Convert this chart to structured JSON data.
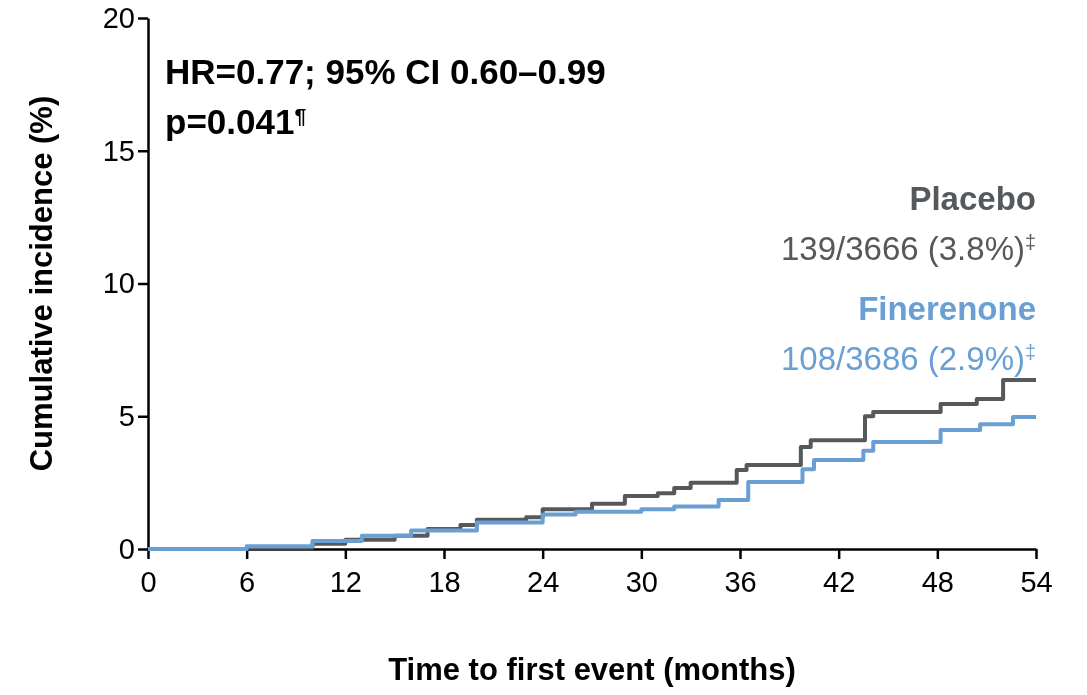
{
  "chart_data": {
    "type": "step",
    "xlabel": "Time to first event (months)",
    "ylabel": "Cumulative incidence (%)",
    "xlim": [
      0,
      54
    ],
    "xticks": [
      0,
      6,
      12,
      18,
      24,
      30,
      36,
      42,
      48,
      54
    ],
    "ylim": [
      0,
      20
    ],
    "yticks": [
      0,
      5,
      10,
      15,
      20
    ],
    "grid": false,
    "legend": "right",
    "line_style": "solid",
    "marker": "none",
    "annotations": [
      "HR=0.77; 95% CI 0.60–0.99",
      "p=0.041$^{¶}$",
      "139/3666 (3.8%)$^{‡}$",
      "108/3686 (2.9%)$^{‡}$"
    ],
    "series": [
      {
        "name": "Placebo",
        "color": "#55595c",
        "x": [
          0,
          6,
          10,
          12,
          15,
          17,
          19,
          20,
          23,
          24,
          27,
          29,
          31,
          32,
          33,
          35.8,
          36.4,
          39.7,
          40.3,
          43.6,
          44.1,
          48.2,
          50.4,
          52,
          54
        ],
        "values": [
          0,
          0.05,
          0.2,
          0.35,
          0.5,
          0.75,
          0.9,
          1.1,
          1.2,
          1.5,
          1.7,
          2.0,
          2.1,
          2.3,
          2.5,
          2.98,
          3.16,
          3.84,
          4.1,
          5.0,
          5.16,
          5.46,
          5.65,
          6.37,
          6.37
        ]
      },
      {
        "name": "Finerenone",
        "color": "#6a9fd4",
        "x": [
          0,
          6,
          10,
          13,
          16,
          20,
          24,
          26,
          30,
          32,
          34.7,
          36.5,
          39.8,
          40.5,
          43.5,
          44.1,
          48.2,
          50.6,
          52.6,
          54
        ],
        "values": [
          0,
          0.1,
          0.3,
          0.5,
          0.7,
          1.0,
          1.3,
          1.4,
          1.5,
          1.6,
          1.85,
          2.52,
          3.0,
          3.35,
          3.7,
          4.03,
          4.48,
          4.7,
          4.97,
          4.97
        ]
      }
    ]
  }
}
